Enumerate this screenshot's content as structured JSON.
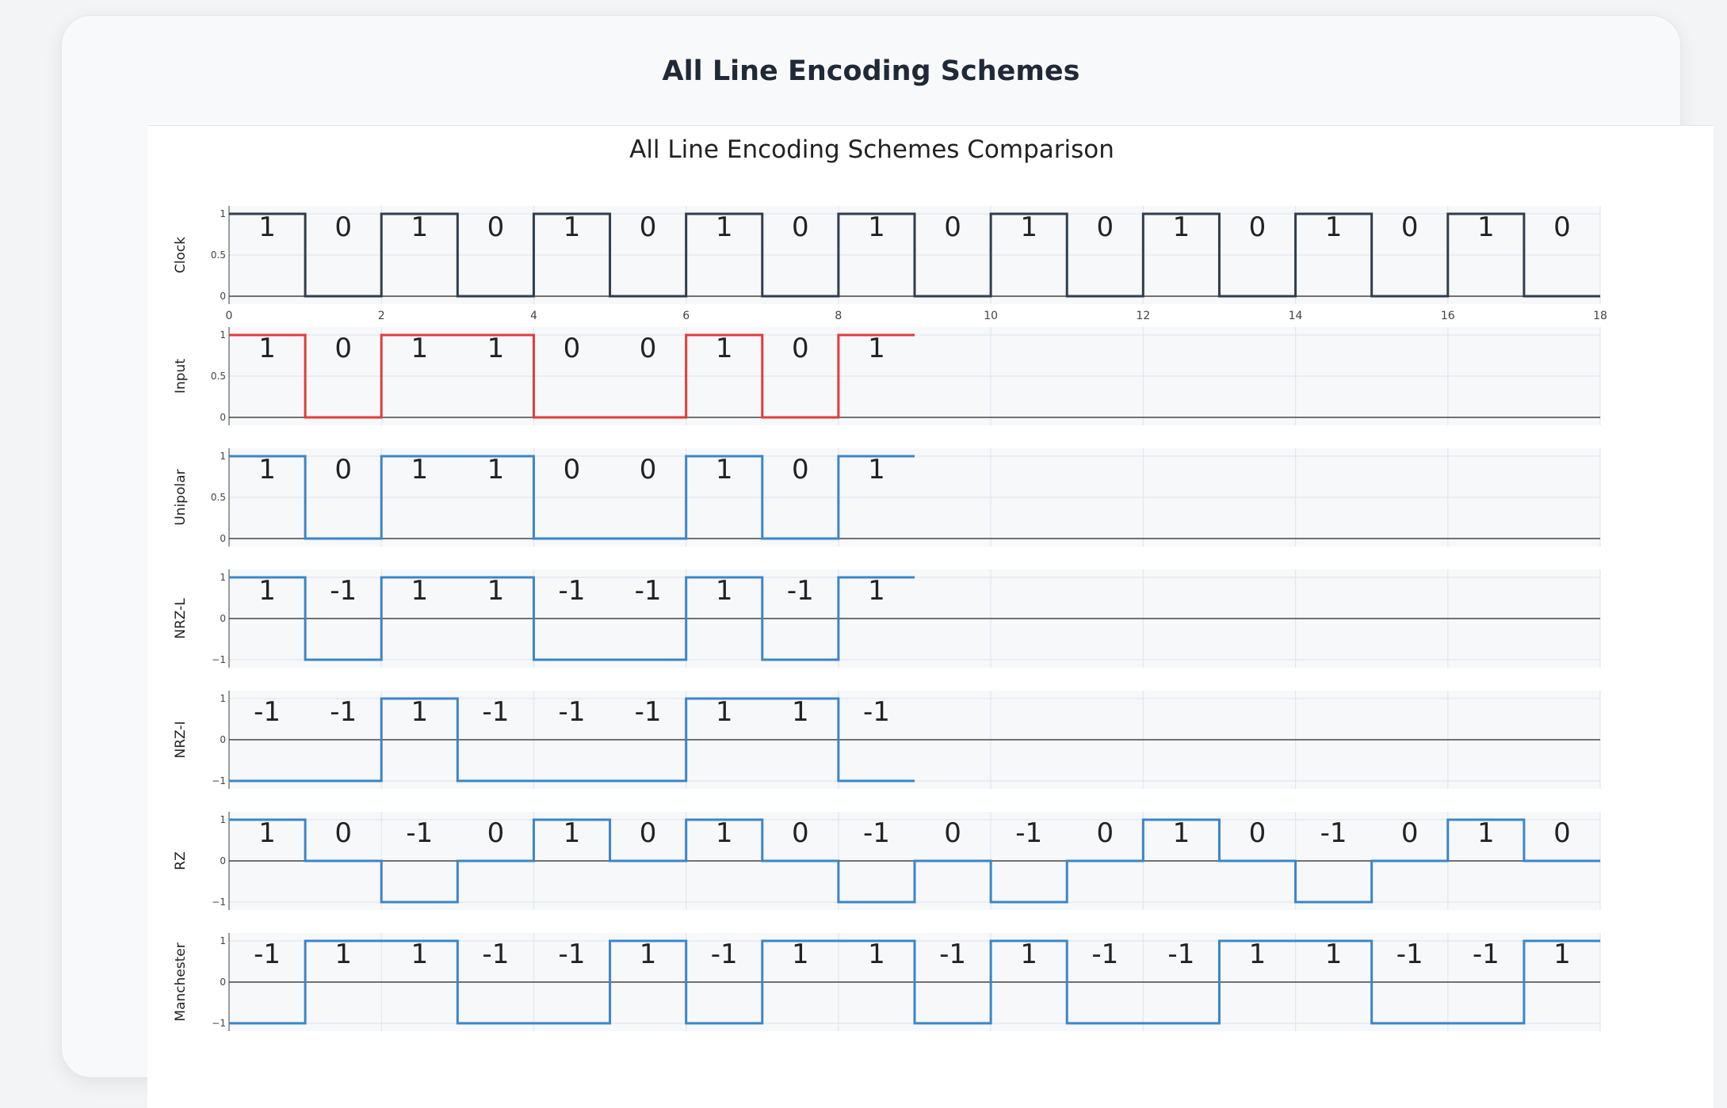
{
  "page": {
    "title": "All Line Encoding Schemes"
  },
  "chart_data": {
    "type": "line",
    "title": "All Line Encoding Schemes Comparison",
    "line_shape": "step",
    "xlim": [
      0,
      18
    ],
    "x_ticks": [
      0,
      2,
      4,
      6,
      8,
      10,
      12,
      14,
      16,
      18
    ],
    "x_tick_labels_shown_on": "Clock",
    "grid": true,
    "legend": "none",
    "colors": {
      "clock": "#2f3e4d",
      "input": "#e03c3c",
      "encoded": "#3a86c8",
      "plot_bg": "#f7f8fa",
      "grid": "#e2e6ee",
      "zero_line": "#444444"
    },
    "series": [
      {
        "name": "Clock",
        "color": "clock",
        "ylim": [
          0,
          1
        ],
        "y_ticks": [
          "0",
          "0.5",
          "1"
        ],
        "values": [
          1,
          0,
          1,
          0,
          1,
          0,
          1,
          0,
          1,
          0,
          1,
          0,
          1,
          0,
          1,
          0,
          1,
          0
        ],
        "labels": [
          "1",
          "0",
          "1",
          "0",
          "1",
          "0",
          "1",
          "0",
          "1",
          "0",
          "1",
          "0",
          "1",
          "0",
          "1",
          "0",
          "1",
          "0"
        ]
      },
      {
        "name": "Input",
        "color": "input",
        "ylim": [
          0,
          1
        ],
        "y_ticks": [
          "0",
          "0.5",
          "1"
        ],
        "values": [
          1,
          0,
          1,
          1,
          0,
          0,
          1,
          0,
          1
        ],
        "labels": [
          "1",
          "0",
          "1",
          "1",
          "0",
          "0",
          "1",
          "0",
          "1"
        ]
      },
      {
        "name": "Unipolar",
        "color": "encoded",
        "ylim": [
          0,
          1
        ],
        "y_ticks": [
          "0",
          "0.5",
          "1"
        ],
        "values": [
          1,
          0,
          1,
          1,
          0,
          0,
          1,
          0,
          1
        ],
        "labels": [
          "1",
          "0",
          "1",
          "1",
          "0",
          "0",
          "1",
          "0",
          "1"
        ]
      },
      {
        "name": "NRZ-L",
        "color": "encoded",
        "ylim": [
          -1,
          1
        ],
        "y_ticks": [
          "−1",
          "0",
          "1"
        ],
        "values": [
          1,
          -1,
          1,
          1,
          -1,
          -1,
          1,
          -1,
          1
        ],
        "labels": [
          "1",
          "-1",
          "1",
          "1",
          "-1",
          "-1",
          "1",
          "-1",
          "1"
        ]
      },
      {
        "name": "NRZ-I",
        "color": "encoded",
        "ylim": [
          -1,
          1
        ],
        "y_ticks": [
          "−1",
          "0",
          "1"
        ],
        "values": [
          -1,
          -1,
          1,
          -1,
          -1,
          -1,
          1,
          1,
          -1
        ],
        "labels": [
          "-1",
          "-1",
          "1",
          "-1",
          "-1",
          "-1",
          "1",
          "1",
          "-1"
        ]
      },
      {
        "name": "RZ",
        "color": "encoded",
        "ylim": [
          -1,
          1
        ],
        "y_ticks": [
          "−1",
          "0",
          "1"
        ],
        "values": [
          1,
          0,
          -1,
          0,
          1,
          0,
          1,
          0,
          -1,
          0,
          -1,
          0,
          1,
          0,
          -1,
          0,
          1,
          0
        ],
        "labels": [
          "1",
          "0",
          "-1",
          "0",
          "1",
          "0",
          "1",
          "0",
          "-1",
          "0",
          "-1",
          "0",
          "1",
          "0",
          "-1",
          "0",
          "1",
          "0"
        ]
      },
      {
        "name": "Manchester",
        "color": "encoded",
        "ylim": [
          -1,
          1
        ],
        "y_ticks": [
          "−1",
          "0",
          "1"
        ],
        "values": [
          -1,
          1,
          1,
          -1,
          -1,
          1,
          -1,
          1,
          1,
          -1,
          1,
          -1,
          -1,
          1,
          1,
          -1,
          -1,
          1
        ],
        "labels": [
          "-1",
          "1",
          "1",
          "-1",
          "-1",
          "1",
          "-1",
          "1",
          "1",
          "-1",
          "1",
          "-1",
          "-1",
          "1",
          "1",
          "-1",
          "-1",
          "1"
        ]
      }
    ]
  }
}
